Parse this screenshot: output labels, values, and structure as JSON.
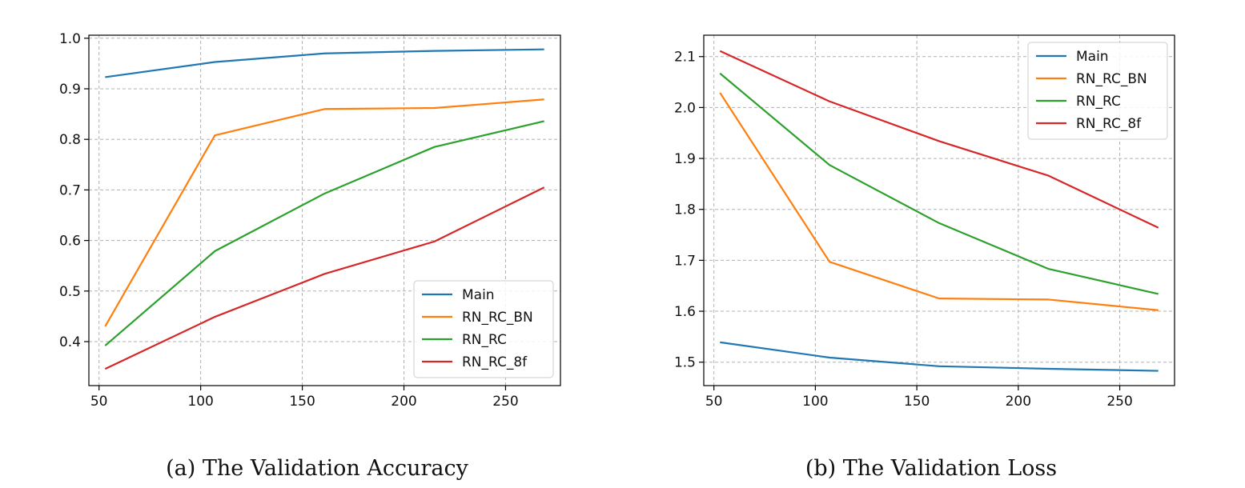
{
  "chart_data": [
    {
      "type": "line",
      "caption": "(a) The Validation Accuracy",
      "x": [
        53,
        107,
        161,
        215,
        269
      ],
      "xlim": [
        45,
        277
      ],
      "ylim": [
        0.313,
        1.006
      ],
      "xticks": [
        50,
        100,
        150,
        200,
        250
      ],
      "yticks": [
        0.4,
        0.5,
        0.6,
        0.7,
        0.8,
        0.9,
        1.0
      ],
      "ytick_labels": [
        "0.4",
        "0.5",
        "0.6",
        "0.7",
        "0.8",
        "0.9",
        "1.0"
      ],
      "grid": true,
      "legend": "lower-right",
      "series": [
        {
          "name": "Main",
          "color": "#1f77b4",
          "values": [
            0.923,
            0.953,
            0.97,
            0.975,
            0.978
          ]
        },
        {
          "name": "RN_RC_BN",
          "color": "#ff7f0e",
          "values": [
            0.43,
            0.808,
            0.86,
            0.862,
            0.879
          ]
        },
        {
          "name": "RN_RC",
          "color": "#2ca02c",
          "values": [
            0.392,
            0.579,
            0.693,
            0.785,
            0.836
          ]
        },
        {
          "name": "RN_RC_8f",
          "color": "#d62728",
          "values": [
            0.346,
            0.449,
            0.534,
            0.598,
            0.705
          ]
        }
      ]
    },
    {
      "type": "line",
      "caption": "(b) The Validation Loss",
      "x": [
        53,
        107,
        161,
        215,
        269
      ],
      "xlim": [
        45,
        277
      ],
      "ylim": [
        1.454,
        2.142
      ],
      "xticks": [
        50,
        100,
        150,
        200,
        250
      ],
      "yticks": [
        1.5,
        1.6,
        1.7,
        1.8,
        1.9,
        2.0,
        2.1
      ],
      "ytick_labels": [
        "1.5",
        "1.6",
        "1.7",
        "1.8",
        "1.9",
        "2.0",
        "2.1"
      ],
      "grid": true,
      "legend": "top-right",
      "series": [
        {
          "name": "Main",
          "color": "#1f77b4",
          "values": [
            1.539,
            1.509,
            1.492,
            1.487,
            1.483
          ]
        },
        {
          "name": "RN_RC_BN",
          "color": "#ff7f0e",
          "values": [
            2.029,
            1.697,
            1.625,
            1.623,
            1.602
          ]
        },
        {
          "name": "RN_RC",
          "color": "#2ca02c",
          "values": [
            2.067,
            1.887,
            1.773,
            1.683,
            1.634
          ]
        },
        {
          "name": "RN_RC_8f",
          "color": "#d62728",
          "values": [
            2.111,
            2.012,
            1.934,
            1.866,
            1.764
          ]
        }
      ]
    }
  ]
}
